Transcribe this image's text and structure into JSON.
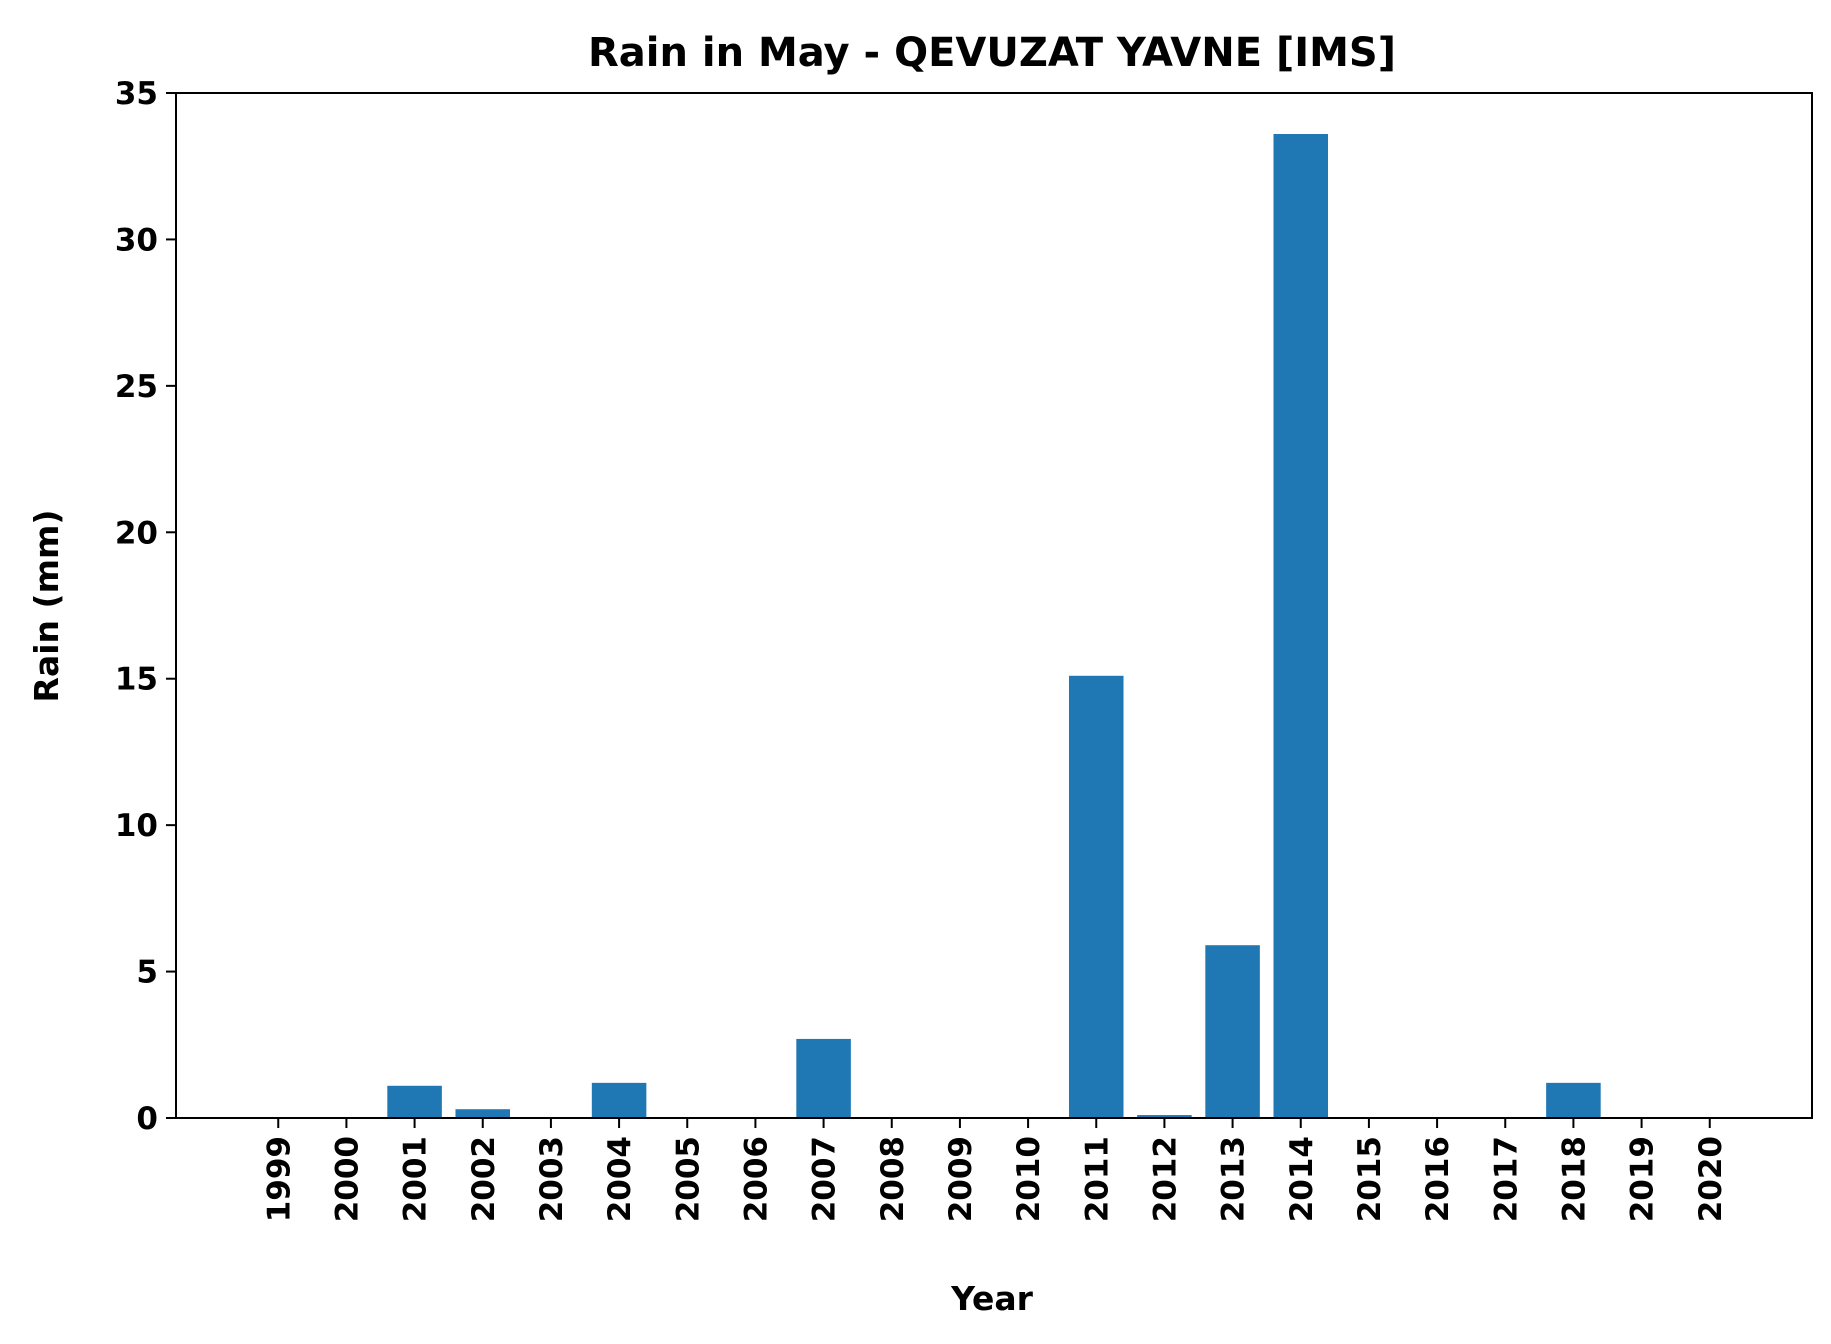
{
  "chart_data": {
    "type": "bar",
    "title": "Rain in May - QEVUZAT YAVNE [IMS]",
    "xlabel": "Year",
    "ylabel": "Rain (mm)",
    "categories": [
      "1999",
      "2000",
      "2001",
      "2002",
      "2003",
      "2004",
      "2005",
      "2006",
      "2007",
      "2008",
      "2009",
      "2010",
      "2011",
      "2012",
      "2013",
      "2014",
      "2015",
      "2016",
      "2017",
      "2018",
      "2019",
      "2020"
    ],
    "values": [
      0,
      0,
      1.1,
      0.3,
      0,
      1.2,
      0,
      0,
      2.7,
      0,
      0,
      0,
      15.1,
      0.1,
      5.9,
      33.6,
      0,
      0,
      0,
      1.2,
      0,
      0
    ],
    "ylim": [
      0,
      35
    ],
    "yticks": [
      0,
      5,
      10,
      15,
      20,
      25,
      30,
      35
    ],
    "grid": false,
    "legend": "none",
    "bar_color": "#1f77b4"
  }
}
